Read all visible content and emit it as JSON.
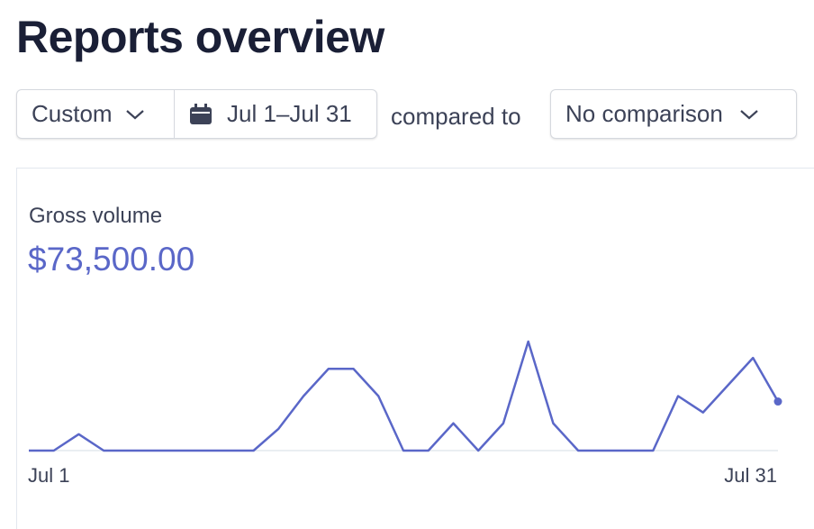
{
  "header": {
    "title": "Reports overview"
  },
  "filters": {
    "range": "Custom",
    "dates": "Jul 1–Jul 31",
    "compare_text": "compared to",
    "comparison": "No comparison"
  },
  "chart_data": {
    "type": "line",
    "title": "Gross volume",
    "total": "$73,500.00",
    "color": "#5a67c8",
    "categories": [
      "Jul 1",
      null,
      null,
      null,
      null,
      null,
      null,
      null,
      null,
      null,
      null,
      null,
      null,
      null,
      null,
      null,
      null,
      null,
      null,
      null,
      null,
      null,
      null,
      null,
      null,
      null,
      null,
      null,
      null,
      null,
      "Jul 31"
    ],
    "values": [
      0,
      0,
      1500,
      0,
      0,
      0,
      0,
      0,
      0,
      0,
      2000,
      5000,
      7500,
      7500,
      5000,
      0,
      0,
      2500,
      0,
      2500,
      10000,
      2500,
      0,
      0,
      0,
      0,
      5000,
      3500,
      6000,
      8500,
      4500
    ]
  }
}
